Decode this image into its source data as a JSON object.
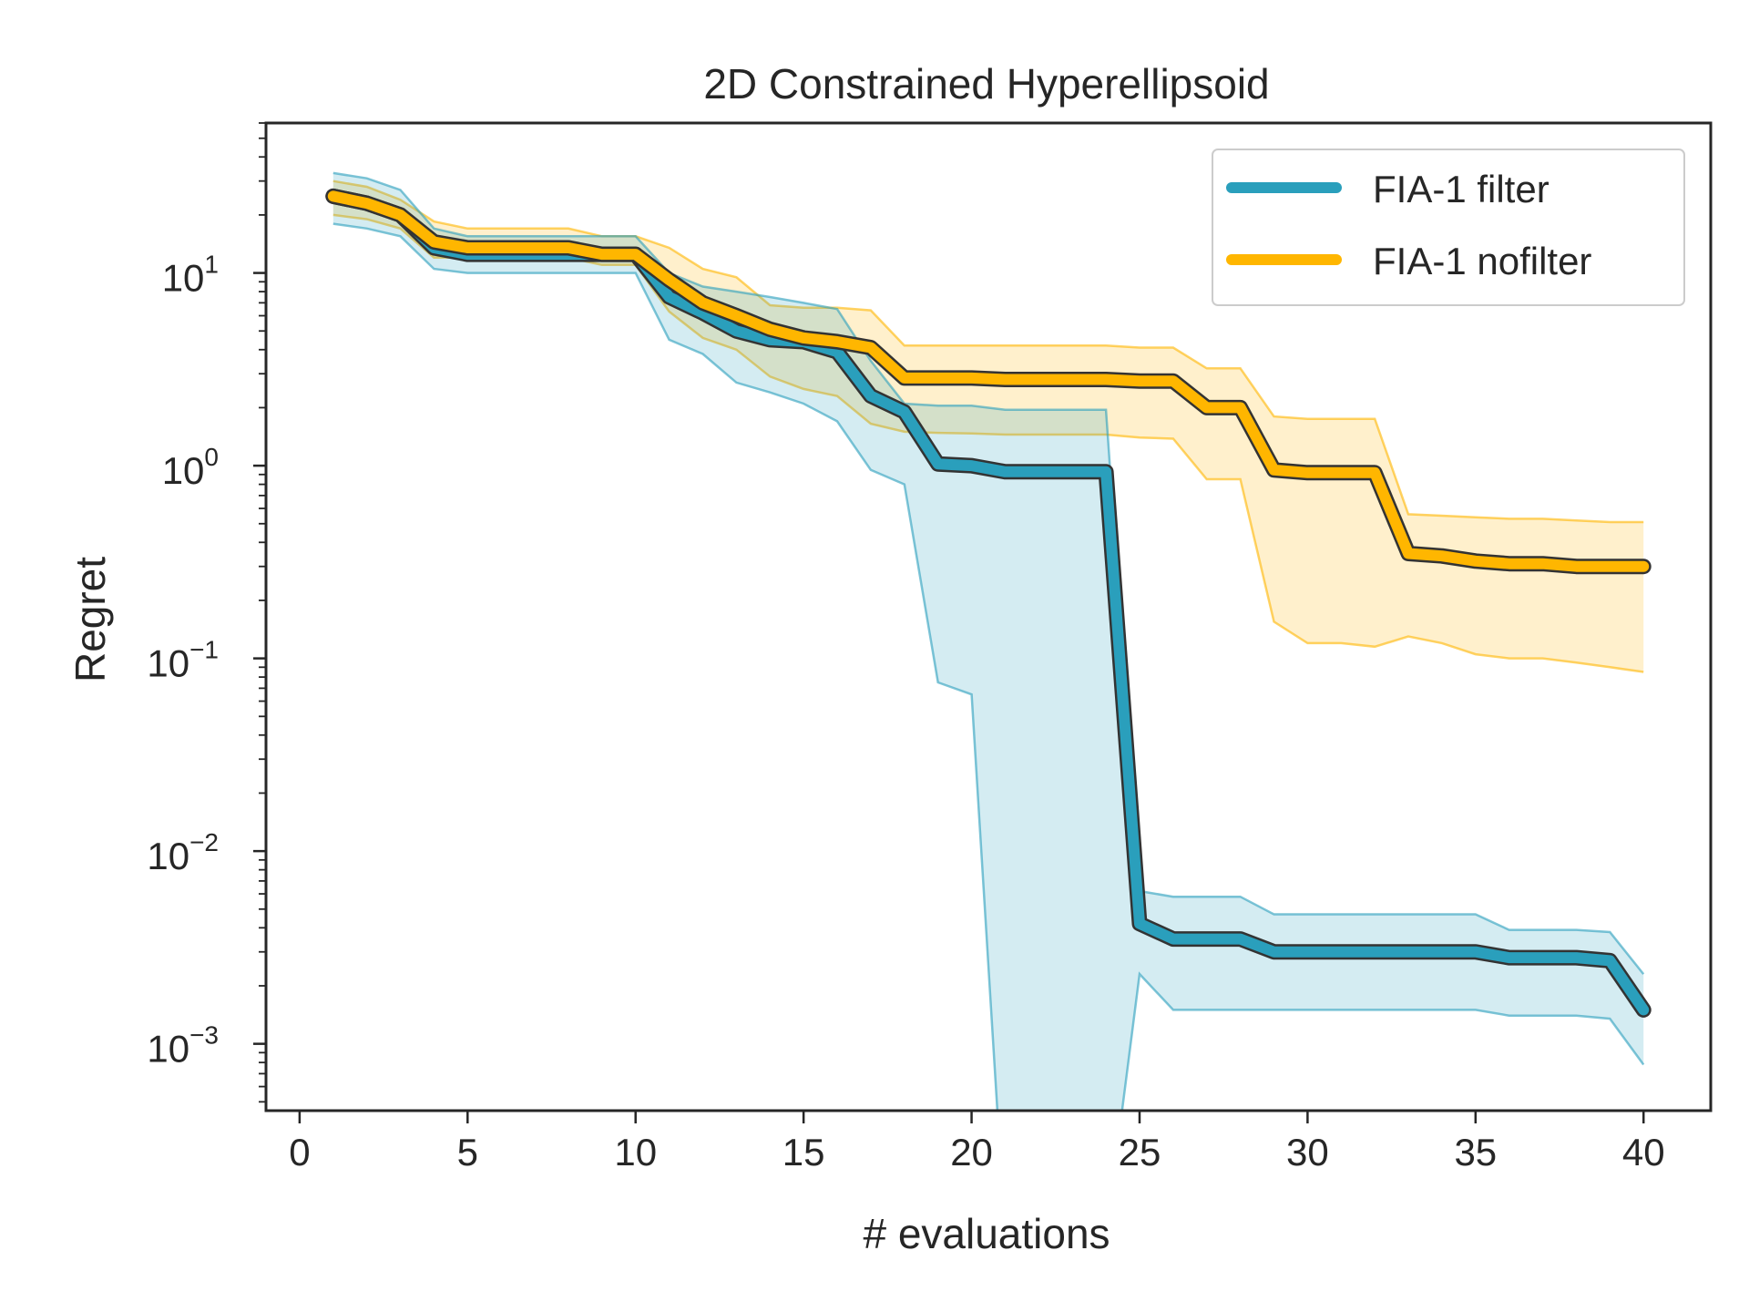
{
  "chart_data": {
    "type": "line",
    "title": "2D Constrained Hyperellipsoid",
    "xlabel": "# evaluations",
    "ylabel": "Regret",
    "xlim": [
      -1,
      42
    ],
    "ylim": [
      0.00045,
      60
    ],
    "yscale": "log",
    "legend_position": "top-right",
    "x_ticks": [
      "0",
      "5",
      "10",
      "15",
      "20",
      "25",
      "30",
      "35",
      "40"
    ],
    "y_ticks": [
      {
        "base": "10",
        "exp": "1"
      },
      {
        "base": "10",
        "exp": "0"
      },
      {
        "base": "10",
        "exp": "−1"
      },
      {
        "base": "10",
        "exp": "−2"
      },
      {
        "base": "10",
        "exp": "−3"
      }
    ],
    "series": [
      {
        "name": "FIA-1 filter",
        "color": "#2a9fbc",
        "x": [
          1,
          2,
          3,
          4,
          5,
          6,
          7,
          8,
          9,
          10,
          11,
          12,
          13,
          14,
          15,
          16,
          17,
          18,
          19,
          20,
          21,
          22,
          23,
          24,
          25,
          26,
          27,
          28,
          29,
          30,
          31,
          32,
          33,
          34,
          35,
          36,
          37,
          38,
          39,
          40
        ],
        "mean": [
          25,
          23,
          20,
          13.5,
          12.5,
          12.5,
          12.5,
          12.5,
          12.5,
          12.5,
          7.5,
          6.2,
          5.0,
          4.5,
          4.4,
          3.9,
          2.3,
          1.9,
          1.02,
          1.0,
          0.93,
          0.93,
          0.93,
          0.93,
          0.0042,
          0.0035,
          0.0035,
          0.0035,
          0.003,
          0.003,
          0.003,
          0.003,
          0.003,
          0.003,
          0.003,
          0.0028,
          0.0028,
          0.0028,
          0.0027,
          0.0015
        ],
        "upper": [
          33,
          31,
          27,
          17,
          15.5,
          15.5,
          15.5,
          15.5,
          15.5,
          15.5,
          10,
          8.5,
          8.0,
          7.5,
          7.0,
          6.5,
          3.5,
          2.1,
          2.05,
          2.05,
          1.95,
          1.95,
          1.95,
          1.95,
          0.0062,
          0.0058,
          0.0058,
          0.0058,
          0.0047,
          0.0047,
          0.0047,
          0.0047,
          0.0047,
          0.0047,
          0.0047,
          0.0039,
          0.0039,
          0.0039,
          0.0038,
          0.0023
        ],
        "lower": [
          18,
          17,
          15.5,
          10.5,
          10,
          10,
          10,
          10,
          10,
          10,
          4.5,
          3.8,
          2.7,
          2.4,
          2.1,
          1.7,
          0.95,
          0.8,
          0.075,
          0.065,
          0.0001,
          0.0001,
          0.0001,
          0.0001,
          0.0023,
          0.0015,
          0.0015,
          0.0015,
          0.0015,
          0.0015,
          0.0015,
          0.0015,
          0.0015,
          0.0015,
          0.0015,
          0.0014,
          0.0014,
          0.0014,
          0.00135,
          0.00078
        ]
      },
      {
        "name": "FIA-1 nofilter",
        "color": "#ffb600",
        "x": [
          1,
          2,
          3,
          4,
          5,
          6,
          7,
          8,
          9,
          10,
          11,
          12,
          13,
          14,
          15,
          16,
          17,
          18,
          19,
          20,
          21,
          22,
          23,
          24,
          25,
          26,
          27,
          28,
          29,
          30,
          31,
          32,
          33,
          34,
          35,
          36,
          37,
          38,
          39,
          40
        ],
        "mean": [
          25,
          23,
          20,
          14.5,
          13.5,
          13.5,
          13.5,
          13.5,
          12.5,
          12.5,
          9.2,
          7.0,
          6.0,
          5.1,
          4.6,
          4.4,
          4.1,
          2.85,
          2.85,
          2.85,
          2.8,
          2.8,
          2.8,
          2.8,
          2.75,
          2.75,
          2.0,
          2.0,
          0.95,
          0.92,
          0.92,
          0.92,
          0.35,
          0.34,
          0.32,
          0.31,
          0.31,
          0.3,
          0.3,
          0.3
        ],
        "upper": [
          30,
          28,
          24,
          18.5,
          17,
          17,
          17,
          17,
          15.5,
          15.5,
          13.5,
          10.5,
          9.5,
          6.8,
          6.6,
          6.6,
          6.4,
          4.2,
          4.2,
          4.2,
          4.2,
          4.2,
          4.2,
          4.2,
          4.1,
          4.1,
          3.2,
          3.2,
          1.8,
          1.75,
          1.75,
          1.75,
          0.56,
          0.55,
          0.54,
          0.53,
          0.53,
          0.52,
          0.51,
          0.51
        ],
        "lower": [
          20,
          19,
          17,
          12,
          12,
          12,
          12,
          12,
          11,
          11,
          6.3,
          4.6,
          4.0,
          2.9,
          2.5,
          2.3,
          1.65,
          1.5,
          1.48,
          1.47,
          1.45,
          1.45,
          1.45,
          1.45,
          1.4,
          1.38,
          0.85,
          0.85,
          0.155,
          0.12,
          0.12,
          0.115,
          0.13,
          0.12,
          0.105,
          0.1,
          0.1,
          0.095,
          0.09,
          0.085
        ]
      }
    ]
  }
}
